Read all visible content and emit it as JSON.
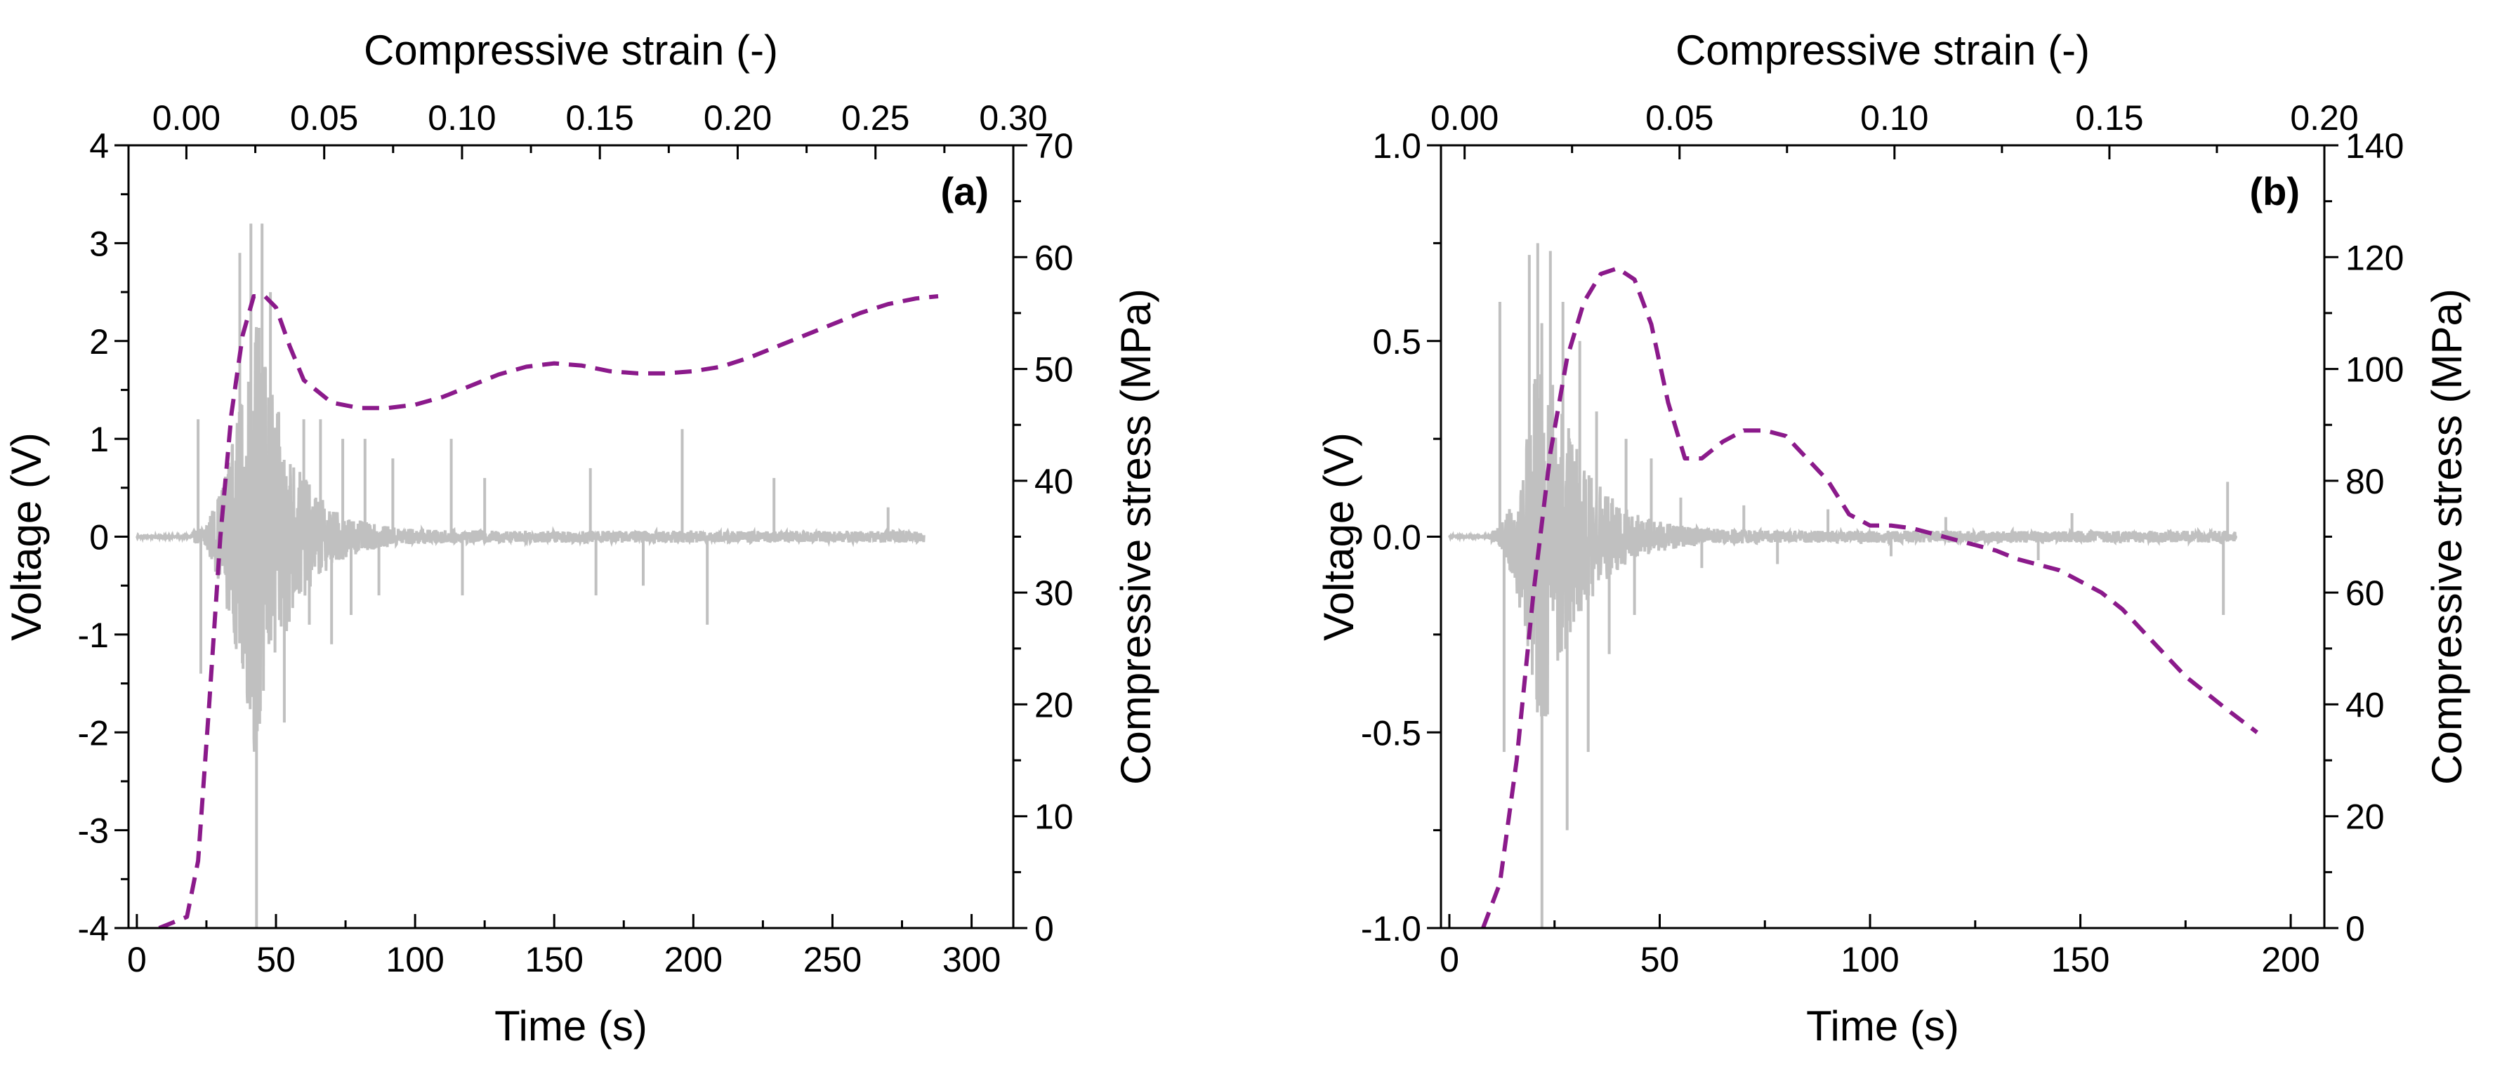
{
  "chart_data": [
    {
      "type": "line",
      "panel_label": "(a)",
      "title": "",
      "xlabel": "Time (s)",
      "ylabel": "Voltage (V)",
      "y2label": "Compressive stress (MPa)",
      "x2label": "Compressive strain (-)",
      "xlim": [
        -3,
        315
      ],
      "ylim": [
        -4,
        4
      ],
      "y2lim": [
        0,
        70
      ],
      "x2lim": [
        -0.021,
        0.3
      ],
      "xticks": [
        0,
        50,
        100,
        150,
        200,
        250,
        300
      ],
      "xtick_labels": [
        "0",
        "50",
        "100",
        "150",
        "200",
        "250",
        "300"
      ],
      "yticks": [
        -4,
        -3,
        -2,
        -1,
        0,
        1,
        2,
        3,
        4
      ],
      "ytick_labels": [
        "-4",
        "-3",
        "-2",
        "-1",
        "0",
        "1",
        "2",
        "3",
        "4"
      ],
      "y2ticks": [
        0,
        10,
        20,
        30,
        40,
        50,
        60,
        70
      ],
      "y2tick_labels": [
        "0",
        "10",
        "20",
        "30",
        "40",
        "50",
        "60",
        "70"
      ],
      "x2ticks": [
        0,
        0.05,
        0.1,
        0.15,
        0.2,
        0.25,
        0.3
      ],
      "x2tick_labels": [
        "0.00",
        "0.05",
        "0.10",
        "0.15",
        "0.20",
        "0.25",
        "0.30"
      ],
      "grid": false,
      "series": [
        {
          "name": "Voltage",
          "axis": "left",
          "style": "solid",
          "color": "#c0c0c0",
          "signal": {
            "t_start": 0,
            "t_onset": 20,
            "t_end": 283,
            "peak_t": 43,
            "peak_amp": 2.4,
            "decay_s": 12,
            "background_amp": 0.06,
            "spikes": [
              {
                "t": 22,
                "v": 1.2
              },
              {
                "t": 23,
                "v": -1.4
              },
              {
                "t": 37,
                "v": 2.9
              },
              {
                "t": 41,
                "v": 3.2
              },
              {
                "t": 43,
                "v": -4.0
              },
              {
                "t": 45,
                "v": 3.2
              },
              {
                "t": 48,
                "v": 2.5
              },
              {
                "t": 53,
                "v": -1.9
              },
              {
                "t": 60,
                "v": 1.2
              },
              {
                "t": 62,
                "v": -0.9
              },
              {
                "t": 66,
                "v": 1.2
              },
              {
                "t": 70,
                "v": -1.1
              },
              {
                "t": 74,
                "v": 1.0
              },
              {
                "t": 77,
                "v": -0.8
              },
              {
                "t": 82,
                "v": 1.0
              },
              {
                "t": 87,
                "v": -0.6
              },
              {
                "t": 92,
                "v": 0.8
              },
              {
                "t": 113,
                "v": 1.0
              },
              {
                "t": 117,
                "v": -0.6
              },
              {
                "t": 125,
                "v": 0.6
              },
              {
                "t": 163,
                "v": 0.7
              },
              {
                "t": 165,
                "v": -0.6
              },
              {
                "t": 182,
                "v": -0.5
              },
              {
                "t": 196,
                "v": 1.1
              },
              {
                "t": 205,
                "v": -0.9
              },
              {
                "t": 229,
                "v": 0.6
              },
              {
                "t": 270,
                "v": 0.3
              }
            ]
          }
        },
        {
          "name": "Compressive stress",
          "axis": "right",
          "style": "dashed",
          "color": "#8b1a8b",
          "x": [
            8,
            18,
            22,
            26,
            30,
            34,
            38,
            42,
            46,
            50,
            55,
            60,
            70,
            80,
            90,
            100,
            110,
            120,
            130,
            140,
            150,
            160,
            170,
            180,
            190,
            200,
            210,
            220,
            230,
            240,
            250,
            260,
            270,
            280,
            288
          ],
          "y": [
            0,
            1,
            6,
            20,
            35,
            46,
            53,
            56.5,
            56.5,
            55.5,
            52,
            49,
            47,
            46.5,
            46.5,
            46.8,
            47.5,
            48.5,
            49.5,
            50.2,
            50.5,
            50.3,
            49.8,
            49.6,
            49.6,
            49.8,
            50.2,
            51,
            52,
            53,
            54,
            55,
            55.8,
            56.3,
            56.5
          ]
        }
      ]
    },
    {
      "type": "line",
      "panel_label": "(b)",
      "title": "",
      "xlabel": "Time (s)",
      "ylabel": "Voltage (V)",
      "y2label": "Compressive stress (MPa)",
      "x2label": "Compressive strain (-)",
      "xlim": [
        -2,
        208
      ],
      "ylim": [
        -1,
        1
      ],
      "y2lim": [
        0,
        140
      ],
      "x2lim": [
        -0.0055,
        0.2
      ],
      "xticks": [
        0,
        50,
        100,
        150,
        200
      ],
      "xtick_labels": [
        "0",
        "50",
        "100",
        "150",
        "200"
      ],
      "yticks": [
        -1,
        -0.5,
        0,
        0.5,
        1
      ],
      "ytick_labels": [
        "-1.0",
        "-0.5",
        "0.0",
        "0.5",
        "1.0"
      ],
      "y2ticks": [
        0,
        20,
        40,
        60,
        80,
        100,
        120,
        140
      ],
      "y2tick_labels": [
        "0",
        "20",
        "40",
        "60",
        "80",
        "100",
        "120",
        "140"
      ],
      "x2ticks": [
        0,
        0.05,
        0.1,
        0.15,
        0.2
      ],
      "x2tick_labels": [
        "0.00",
        "0.05",
        "0.10",
        "0.15",
        "0.20"
      ],
      "grid": false,
      "series": [
        {
          "name": "Voltage",
          "axis": "left",
          "style": "solid",
          "color": "#c0c0c0",
          "signal": {
            "t_start": 0,
            "t_onset": 10,
            "t_end": 187,
            "peak_t": 22,
            "peak_amp": 0.55,
            "decay_s": 9,
            "background_amp": 0.015,
            "spikes": [
              {
                "t": 12,
                "v": 0.6
              },
              {
                "t": 13,
                "v": -0.55
              },
              {
                "t": 19,
                "v": 0.72
              },
              {
                "t": 21,
                "v": 0.75
              },
              {
                "t": 22,
                "v": -1.0
              },
              {
                "t": 24,
                "v": 0.73
              },
              {
                "t": 27,
                "v": 0.6
              },
              {
                "t": 28,
                "v": -0.75
              },
              {
                "t": 31,
                "v": 0.5
              },
              {
                "t": 33,
                "v": -0.55
              },
              {
                "t": 35,
                "v": 0.32
              },
              {
                "t": 38,
                "v": -0.3
              },
              {
                "t": 42,
                "v": 0.25
              },
              {
                "t": 44,
                "v": -0.2
              },
              {
                "t": 48,
                "v": 0.2
              },
              {
                "t": 55,
                "v": 0.1
              },
              {
                "t": 60,
                "v": -0.08
              },
              {
                "t": 70,
                "v": 0.08
              },
              {
                "t": 78,
                "v": -0.07
              },
              {
                "t": 90,
                "v": 0.07
              },
              {
                "t": 105,
                "v": -0.05
              },
              {
                "t": 118,
                "v": 0.05
              },
              {
                "t": 140,
                "v": -0.06
              },
              {
                "t": 148,
                "v": 0.06
              },
              {
                "t": 184,
                "v": -0.2
              },
              {
                "t": 185,
                "v": 0.14
              }
            ]
          }
        },
        {
          "name": "Compressive stress",
          "axis": "right",
          "style": "dashed",
          "color": "#8b1a8b",
          "x": [
            8,
            12,
            16,
            20,
            24,
            28,
            32,
            36,
            40,
            44,
            48,
            52,
            56,
            60,
            65,
            70,
            75,
            80,
            85,
            90,
            95,
            100,
            105,
            110,
            115,
            120,
            125,
            130,
            135,
            140,
            145,
            150,
            155,
            160,
            165,
            170,
            175,
            180,
            185,
            192
          ],
          "y": [
            0,
            8,
            30,
            60,
            85,
            102,
            112,
            117,
            118,
            116,
            108,
            94,
            84,
            84,
            87,
            89,
            89,
            88,
            84,
            80,
            74,
            72,
            72,
            71.5,
            70.5,
            69.5,
            68.5,
            67.5,
            66,
            65,
            64,
            62,
            60,
            57,
            53,
            49,
            45,
            42,
            39,
            35
          ]
        }
      ]
    }
  ]
}
